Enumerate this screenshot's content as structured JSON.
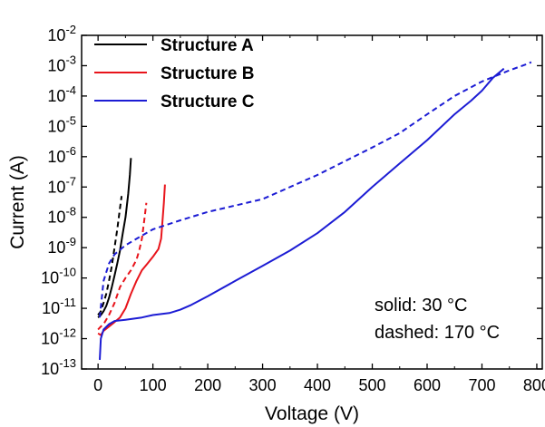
{
  "chart_data": {
    "type": "line",
    "xlabel": "Voltage (V)",
    "ylabel": "Current (A)",
    "xlim": [
      -30,
      810
    ],
    "ylim": [
      1e-13,
      0.01
    ],
    "yscale": "log",
    "x_ticks": [
      0,
      100,
      200,
      300,
      400,
      500,
      600,
      700,
      800
    ],
    "x_tick_labels": [
      "0",
      "100",
      "200",
      "300",
      "400",
      "500",
      "600",
      "700",
      "800"
    ],
    "y_tick_exponents": [
      -13,
      -12,
      -11,
      -10,
      -9,
      -8,
      -7,
      -6,
      -5,
      -4,
      -3,
      -2
    ],
    "y_tick_base": "10",
    "grid": false,
    "legend_position": "top-left",
    "legend": [
      {
        "label": "Structure A",
        "color": "#000000"
      },
      {
        "label": "Structure B",
        "color": "#e8141b"
      },
      {
        "label": "Structure C",
        "color": "#1c1cd4"
      }
    ],
    "annotations": [
      "solid: 30 °C",
      "dashed: 170 °C"
    ],
    "series": [
      {
        "name": "Structure A",
        "color": "#000000",
        "style": "solid",
        "x": [
          0,
          5,
          10,
          15,
          20,
          25,
          30,
          35,
          40,
          45,
          50,
          55,
          58,
          60
        ],
        "y": [
          5e-12,
          6e-12,
          8e-12,
          1.2e-11,
          2.2e-11,
          5e-11,
          1.2e-10,
          3e-10,
          8e-10,
          3e-09,
          1e-08,
          6e-08,
          2.5e-07,
          9e-07
        ]
      },
      {
        "name": "Structure A",
        "color": "#000000",
        "style": "dashed",
        "x": [
          0,
          5,
          10,
          15,
          20,
          25,
          30,
          35,
          40,
          43
        ],
        "y": [
          6e-12,
          8e-12,
          1.5e-11,
          3e-11,
          8e-11,
          2.5e-10,
          1e-09,
          4e-09,
          2e-08,
          5e-08
        ]
      },
      {
        "name": "Structure B",
        "color": "#e8141b",
        "style": "solid",
        "x": [
          0,
          5,
          10,
          20,
          30,
          40,
          50,
          60,
          70,
          80,
          90,
          100,
          110,
          115,
          118,
          120,
          122
        ],
        "y": [
          1.5e-12,
          1.3e-12,
          1.8e-12,
          2.5e-12,
          3.5e-12,
          5e-12,
          1e-11,
          3e-11,
          8e-11,
          1.8e-10,
          3e-10,
          5e-10,
          9e-10,
          2e-09,
          1e-08,
          3e-08,
          1.2e-07
        ]
      },
      {
        "name": "Structure B",
        "color": "#e8141b",
        "style": "dashed",
        "x": [
          0,
          5,
          10,
          20,
          30,
          40,
          50,
          60,
          70,
          75,
          80,
          85,
          88
        ],
        "y": [
          2e-12,
          2.5e-12,
          3e-12,
          6e-12,
          1.5e-11,
          5e-11,
          1e-10,
          1.8e-10,
          4e-10,
          8e-10,
          2e-09,
          1e-08,
          3e-08
        ]
      },
      {
        "name": "Structure C",
        "color": "#1c1cd4",
        "style": "solid",
        "x": [
          3,
          5,
          10,
          20,
          30,
          50,
          80,
          100,
          130,
          150,
          170,
          200,
          250,
          300,
          350,
          400,
          450,
          500,
          550,
          600,
          650,
          680,
          700,
          720,
          740
        ],
        "y": [
          2e-13,
          1e-12,
          2e-12,
          3e-12,
          3.8e-12,
          4.2e-12,
          5e-12,
          6e-12,
          7e-12,
          9e-12,
          1.3e-11,
          2.5e-11,
          8e-11,
          2.5e-10,
          8e-10,
          3e-09,
          1.5e-08,
          1e-07,
          6e-07,
          3.5e-06,
          2.5e-05,
          7e-05,
          0.00015,
          0.0004,
          0.0008
        ]
      },
      {
        "name": "Structure C",
        "color": "#1c1cd4",
        "style": "dashed",
        "x": [
          3,
          10,
          20,
          30,
          50,
          80,
          100,
          150,
          200,
          300,
          400,
          500,
          550,
          600,
          650,
          700,
          750,
          780,
          790
        ],
        "y": [
          5e-12,
          8e-11,
          3e-10,
          6e-10,
          1.2e-09,
          2.5e-09,
          4e-09,
          8e-09,
          1.5e-08,
          4e-08,
          2.5e-07,
          2e-06,
          6e-06,
          2.5e-05,
          0.0001,
          0.0003,
          0.0007,
          0.0011,
          0.0013
        ]
      }
    ]
  }
}
